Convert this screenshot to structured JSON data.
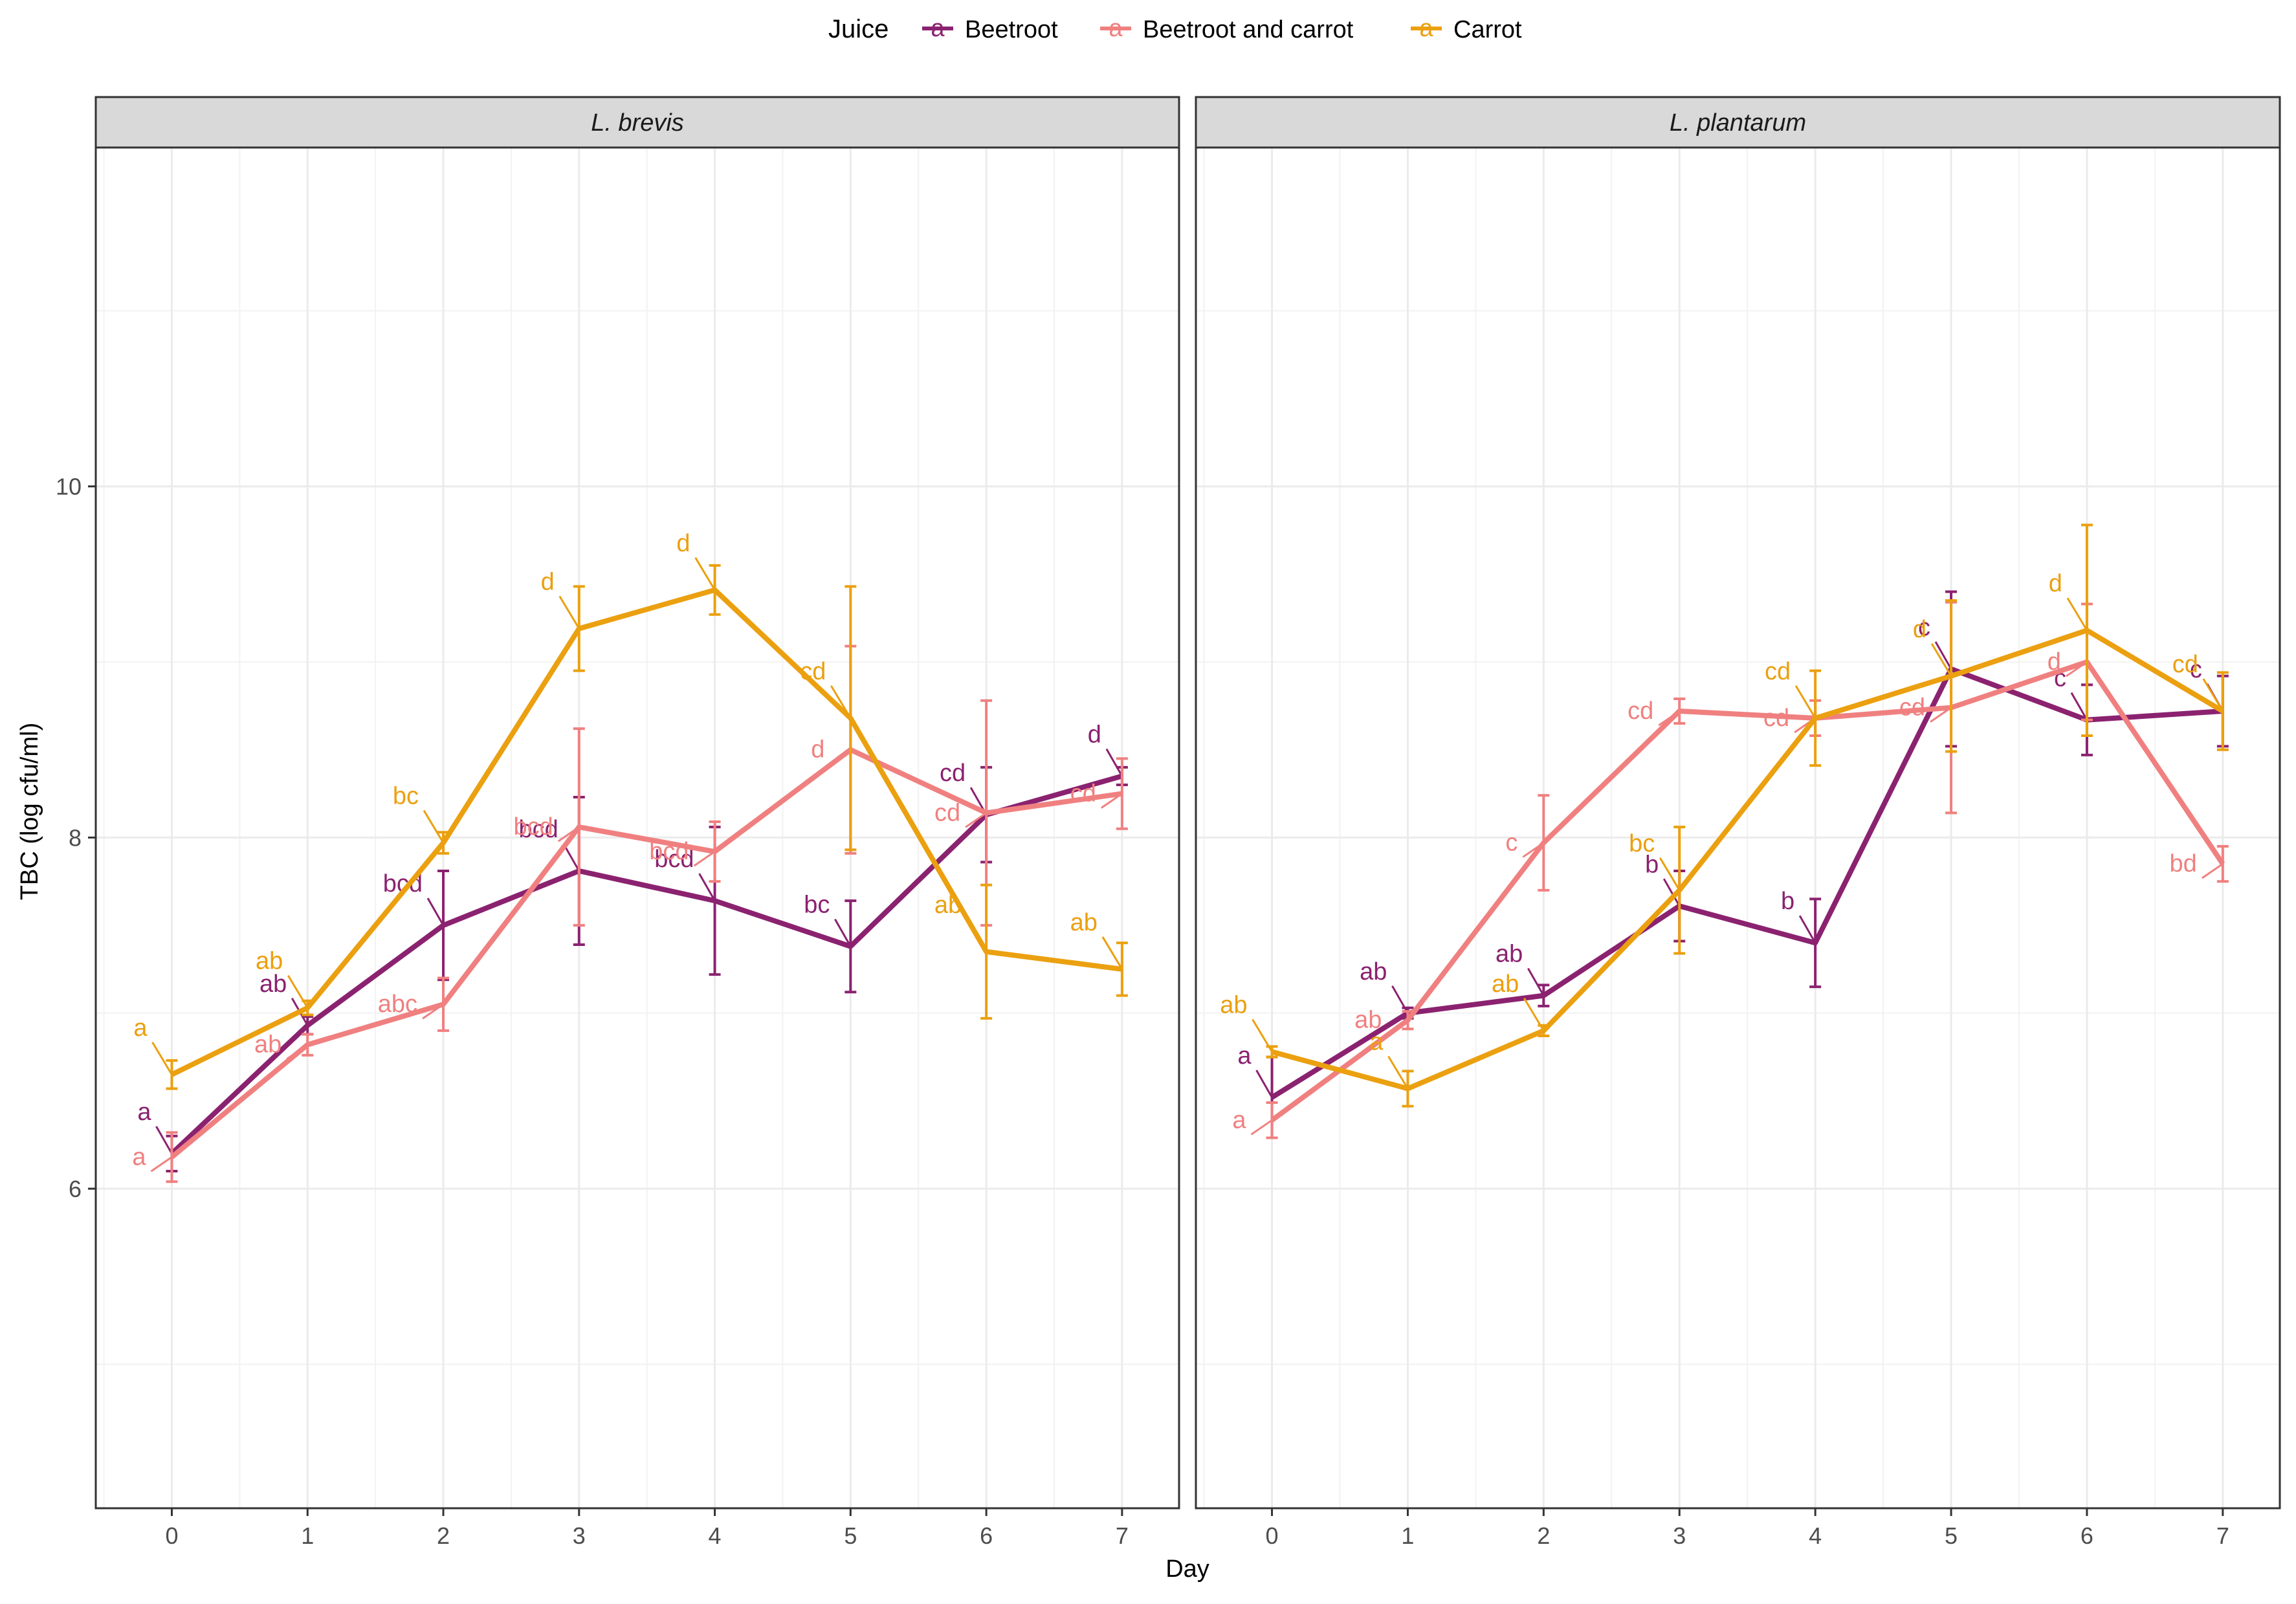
{
  "chart_data": {
    "type": "line",
    "xlabel": "Day",
    "ylabel": "TBC (log cfu/ml)",
    "x": [
      0,
      1,
      2,
      3,
      4,
      5,
      6,
      7
    ],
    "xlim": [
      -0.56,
      7.42
    ],
    "ylim": [
      4.18,
      11.93
    ],
    "yticks": [
      6,
      8,
      10
    ],
    "xticks": [
      0,
      1,
      2,
      3,
      4,
      5,
      6,
      7
    ],
    "legend": {
      "title": "Juice",
      "position": "top",
      "key_glyph": "a",
      "items": [
        {
          "name": "Beetroot",
          "color": "#8B2270"
        },
        {
          "name": "Beetroot and carrot",
          "color": "#F08080"
        },
        {
          "name": "Carrot",
          "color": "#EBA010"
        }
      ]
    },
    "panels": [
      {
        "strip": "L. brevis",
        "series": [
          {
            "name": "Beetroot",
            "color": "#8B2270",
            "values": [
              6.2,
              6.93,
              7.5,
              7.81,
              7.64,
              7.38,
              8.13,
              8.35
            ],
            "err": [
              0.1,
              0.05,
              0.31,
              0.42,
              0.42,
              0.26,
              0.27,
              0.05
            ],
            "letters": [
              "a",
              "ab",
              "bcd",
              "bcd",
              "bcd",
              "bc",
              "cd",
              "d"
            ]
          },
          {
            "name": "Beetroot and carrot",
            "color": "#F08080",
            "values": [
              6.18,
              6.82,
              7.05,
              8.06,
              7.92,
              8.5,
              8.14,
              8.25
            ],
            "err": [
              0.14,
              0.06,
              0.15,
              0.56,
              0.17,
              0.59,
              0.64,
              0.2
            ],
            "letters": [
              "a",
              "ab",
              "abc",
              "bcd",
              "bcd",
              "d",
              "cd",
              "cd"
            ]
          },
          {
            "name": "Carrot",
            "color": "#EBA010",
            "values": [
              6.65,
              7.03,
              7.97,
              9.19,
              9.41,
              8.68,
              7.35,
              7.25
            ],
            "err": [
              0.08,
              0.04,
              0.06,
              0.24,
              0.14,
              0.75,
              0.38,
              0.15
            ],
            "letters": [
              "a",
              "ab",
              "bc",
              "d",
              "d",
              "cd",
              "ab",
              "ab"
            ]
          }
        ]
      },
      {
        "strip": "L. plantarum",
        "series": [
          {
            "name": "Beetroot",
            "color": "#8B2270",
            "values": [
              6.52,
              7.0,
              7.1,
              7.61,
              7.4,
              8.96,
              8.67,
              8.72
            ],
            "err": [
              0.23,
              0.03,
              0.06,
              0.2,
              0.25,
              0.44,
              0.2,
              0.2
            ],
            "letters": [
              "a",
              "ab",
              "ab",
              "b",
              "b",
              "c",
              "c",
              "c"
            ]
          },
          {
            "name": "Beetroot and carrot",
            "color": "#F08080",
            "values": [
              6.39,
              6.96,
              7.97,
              8.72,
              8.68,
              8.74,
              9.0,
              7.85
            ],
            "err": [
              0.1,
              0.05,
              0.27,
              0.07,
              0.1,
              0.6,
              0.33,
              0.1
            ],
            "letters": [
              "a",
              "ab",
              "c",
              "cd",
              "cd",
              "cd",
              "d",
              "bd"
            ]
          },
          {
            "name": "Carrot",
            "color": "#EBA010",
            "values": [
              6.78,
              6.57,
              6.9,
              7.7,
              8.68,
              8.92,
              9.18,
              8.72
            ],
            "err": [
              0.03,
              0.1,
              0.03,
              0.36,
              0.27,
              0.43,
              0.6,
              0.22
            ],
            "letters": [
              "ab",
              "a",
              "ab",
              "bc",
              "cd",
              "d",
              "d",
              "cd"
            ]
          }
        ]
      }
    ]
  }
}
